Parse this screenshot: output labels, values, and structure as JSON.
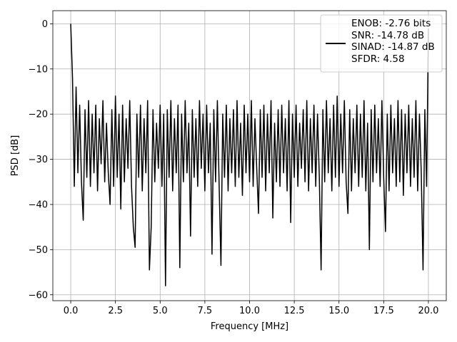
{
  "chart_data": {
    "type": "line",
    "xlabel": "Frequency [MHz]",
    "ylabel": "PSD [dB]",
    "xlim": [
      -1,
      21
    ],
    "ylim": [
      -61.3,
      2.9
    ],
    "xticks": [
      {
        "value": 0,
        "label": "0.0"
      },
      2.5,
      {
        "value": 5,
        "label": "5.0"
      },
      7.5,
      {
        "value": 10,
        "label": "10.0"
      },
      12.5,
      {
        "value": 15,
        "label": "15.0"
      },
      17.5,
      {
        "value": 20,
        "label": "20.0"
      }
    ],
    "yticks": [
      {
        "value": 0,
        "label": "0"
      },
      {
        "value": -10,
        "label": "−10"
      },
      {
        "value": -20,
        "label": "−20"
      },
      {
        "value": -30,
        "label": "−30"
      },
      {
        "value": -40,
        "label": "−40"
      },
      {
        "value": -50,
        "label": "−50"
      },
      {
        "value": -60,
        "label": "−60"
      }
    ],
    "grid": true,
    "legend": "upper right",
    "x": [
      0,
      0.1,
      0.2,
      0.3,
      0.4,
      0.5,
      0.6,
      0.7,
      0.8,
      0.9,
      1,
      1.1,
      1.2,
      1.3,
      1.4,
      1.5,
      1.6,
      1.7,
      1.8,
      1.9,
      2,
      2.1,
      2.2,
      2.3,
      2.4,
      2.5,
      2.6,
      2.7,
      2.8,
      2.9,
      3,
      3.1,
      3.2,
      3.3,
      3.4,
      3.5,
      3.6,
      3.7,
      3.8,
      3.9,
      4,
      4.1,
      4.2,
      4.3,
      4.4,
      4.5,
      4.6,
      4.7,
      4.8,
      4.9,
      5,
      5.1,
      5.2,
      5.3,
      5.4,
      5.5,
      5.6,
      5.7,
      5.8,
      5.9,
      6,
      6.1,
      6.2,
      6.3,
      6.4,
      6.5,
      6.6,
      6.7,
      6.8,
      6.9,
      7,
      7.1,
      7.2,
      7.3,
      7.4,
      7.5,
      7.6,
      7.7,
      7.8,
      7.9,
      8,
      8.1,
      8.2,
      8.3,
      8.4,
      8.5,
      8.6,
      8.7,
      8.8,
      8.9,
      9,
      9.1,
      9.2,
      9.3,
      9.4,
      9.5,
      9.6,
      9.7,
      9.8,
      9.9,
      10,
      10.1,
      10.2,
      10.3,
      10.4,
      10.5,
      10.6,
      10.7,
      10.8,
      10.9,
      11,
      11.1,
      11.2,
      11.3,
      11.4,
      11.5,
      11.6,
      11.7,
      11.8,
      11.9,
      12,
      12.1,
      12.2,
      12.3,
      12.4,
      12.5,
      12.6,
      12.7,
      12.8,
      12.9,
      13,
      13.1,
      13.2,
      13.3,
      13.4,
      13.5,
      13.6,
      13.7,
      13.8,
      13.9,
      14,
      14.1,
      14.2,
      14.3,
      14.4,
      14.5,
      14.6,
      14.7,
      14.8,
      14.9,
      15,
      15.1,
      15.2,
      15.3,
      15.4,
      15.5,
      15.6,
      15.7,
      15.8,
      15.9,
      16,
      16.1,
      16.2,
      16.3,
      16.4,
      16.5,
      16.6,
      16.7,
      16.8,
      16.9,
      17,
      17.1,
      17.2,
      17.3,
      17.4,
      17.5,
      17.6,
      17.7,
      17.8,
      17.9,
      18,
      18.1,
      18.2,
      18.3,
      18.4,
      18.5,
      18.6,
      18.7,
      18.8,
      18.9,
      19,
      19.1,
      19.2,
      19.3,
      19.4,
      19.5,
      19.6,
      19.7,
      19.8,
      19.9,
      20
    ],
    "series": [
      {
        "name": "ENOB: -2.76 bits\nSNR: -14.78 dB\nSINAD: -14.87 dB\nSFDR: 4.58",
        "color": "#000000",
        "values": [
          0,
          -12,
          -36,
          -14,
          -33,
          -18,
          -35,
          -43.5,
          -19,
          -34,
          -17,
          -36,
          -20,
          -33,
          -18,
          -37,
          -21,
          -31,
          -17,
          -35,
          -22,
          -33,
          -40,
          -19,
          -36,
          -16,
          -34,
          -20,
          -41,
          -18,
          -35,
          -21,
          -32,
          -17,
          -36,
          -45,
          -49.5,
          -20,
          -34,
          -18,
          -37,
          -21,
          -33,
          -17,
          -54.5,
          -45,
          -19,
          -35,
          -22,
          -32,
          -18,
          -36,
          -20,
          -58,
          -19,
          -34,
          -17,
          -37,
          -21,
          -33,
          -18,
          -54,
          -20,
          -35,
          -17,
          -33,
          -22,
          -47,
          -19,
          -34,
          -21,
          -36,
          -17,
          -32,
          -20,
          -37,
          -18,
          -33,
          -22,
          -51,
          -19,
          -35,
          -17,
          -36,
          -53.5,
          -20,
          -34,
          -18,
          -37,
          -21,
          -33,
          -19,
          -36,
          -17,
          -34,
          -22,
          -38,
          -18,
          -33,
          -20,
          -35,
          -17,
          -36,
          -21,
          -32,
          -42,
          -19,
          -34,
          -18,
          -37,
          -20,
          -33,
          -17,
          -43,
          -22,
          -35,
          -19,
          -36,
          -18,
          -33,
          -21,
          -37,
          -17,
          -44,
          -20,
          -34,
          -18,
          -36,
          -22,
          -32,
          -19,
          -35,
          -17,
          -37,
          -21,
          -33,
          -18,
          -36,
          -20,
          -34,
          -54.5,
          -19,
          -35,
          -17,
          -33,
          -21,
          -37,
          -18,
          -34,
          -16,
          -36,
          -20,
          -33,
          -17,
          -35,
          -42,
          -19,
          -37,
          -21,
          -33,
          -18,
          -36,
          -20,
          -34,
          -17,
          -37,
          -22,
          -50,
          -19,
          -35,
          -18,
          -33,
          -21,
          -36,
          -17,
          -34,
          -46,
          -20,
          -37,
          -18,
          -33,
          -21,
          -36,
          -17,
          -35,
          -19,
          -38,
          -20,
          -33,
          -18,
          -36,
          -21,
          -34,
          -17,
          -37,
          -20,
          -33,
          -54.5,
          -19,
          -36,
          -1
        ]
      }
    ]
  }
}
